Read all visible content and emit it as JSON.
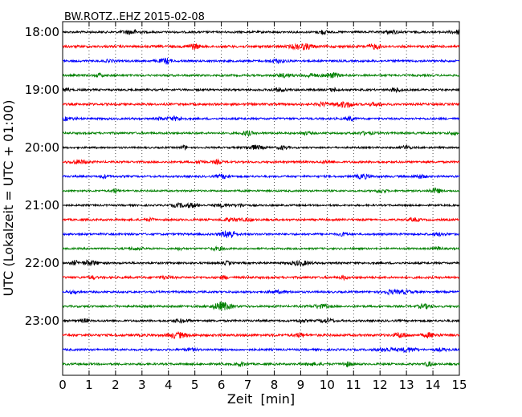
{
  "chart_data": {
    "type": "line",
    "title": "BW.ROTZ..EHZ 2015-02-08",
    "xlabel": "Zeit  [min]",
    "ylabel": "UTC (Lokalzeit = UTC + 01:00)",
    "xlim": [
      0,
      15
    ],
    "x_ticks": [
      0,
      1,
      2,
      3,
      4,
      5,
      6,
      7,
      8,
      9,
      10,
      11,
      12,
      13,
      14,
      15
    ],
    "y_tick_labels": [
      "18:00",
      "19:00",
      "20:00",
      "21:00",
      "22:00",
      "23:00"
    ],
    "grid": "vertical-dotted",
    "trace_colors": [
      "#000000",
      "#ff0000",
      "#0000ff",
      "#008000"
    ],
    "traces": [
      {
        "start": "18:00",
        "amplitude": 0.5
      },
      {
        "start": "18:15",
        "amplitude": 0.6
      },
      {
        "start": "18:30",
        "amplitude": 0.5
      },
      {
        "start": "18:45",
        "amplitude": 0.5
      },
      {
        "start": "19:00",
        "amplitude": 0.5
      },
      {
        "start": "19:15",
        "amplitude": 0.55
      },
      {
        "start": "19:30",
        "amplitude": 0.5
      },
      {
        "start": "19:45",
        "amplitude": 0.5
      },
      {
        "start": "20:00",
        "amplitude": 0.45
      },
      {
        "start": "20:15",
        "amplitude": 0.5
      },
      {
        "start": "20:30",
        "amplitude": 0.5
      },
      {
        "start": "20:45",
        "amplitude": 0.45
      },
      {
        "start": "21:00",
        "amplitude": 0.45
      },
      {
        "start": "21:15",
        "amplitude": 0.5
      },
      {
        "start": "21:30",
        "amplitude": 0.5
      },
      {
        "start": "21:45",
        "amplitude": 0.45
      },
      {
        "start": "22:00",
        "amplitude": 0.5
      },
      {
        "start": "22:15",
        "amplitude": 0.55
      },
      {
        "start": "22:30",
        "amplitude": 0.5
      },
      {
        "start": "22:45",
        "amplitude": 0.5
      },
      {
        "start": "23:00",
        "amplitude": 0.5
      },
      {
        "start": "23:15",
        "amplitude": 0.6
      },
      {
        "start": "23:30",
        "amplitude": 0.5
      },
      {
        "start": "23:45",
        "amplitude": 0.5
      }
    ]
  }
}
